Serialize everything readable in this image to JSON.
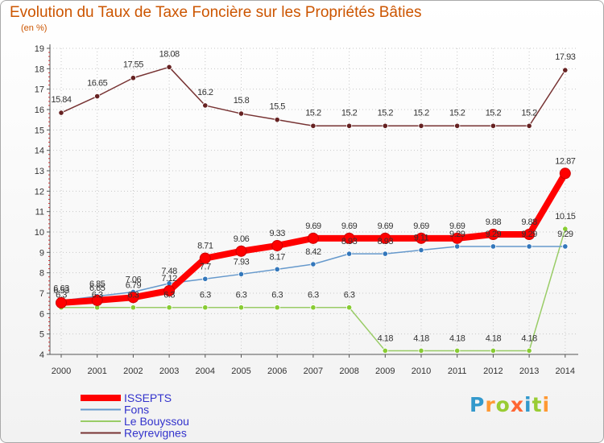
{
  "chart_data": {
    "type": "line",
    "title": "Evolution du Taux de Taxe Foncière sur les Propriétés Bâties",
    "subtitle": "(en %)",
    "x": [
      "2000",
      "2001",
      "2002",
      "2003",
      "2004",
      "2005",
      "2006",
      "2007",
      "2008",
      "2009",
      "2010",
      "2011",
      "2012",
      "2013",
      "2014"
    ],
    "ylim": [
      4,
      19
    ],
    "yticks": [
      4,
      5,
      6,
      7,
      8,
      9,
      10,
      11,
      12,
      13,
      14,
      15,
      16,
      17,
      18,
      19
    ],
    "series": [
      {
        "name": "ISSEPTS",
        "color": "#ff0000",
        "width": 8,
        "values": [
          6.53,
          6.65,
          6.79,
          7.12,
          8.71,
          9.06,
          9.33,
          9.69,
          9.69,
          9.69,
          9.69,
          9.69,
          9.88,
          9.88,
          12.87
        ],
        "labels": [
          "6.53",
          "6.65",
          "6.79",
          "7.12",
          "8.71",
          "9.06",
          "9.33",
          "9.69",
          "9.69",
          "9.69",
          "9.69",
          "9.69",
          "9.88",
          "9.88",
          "12.87"
        ]
      },
      {
        "name": "Fons",
        "color": "#6699cc",
        "width": 1.5,
        "values": [
          6.63,
          6.85,
          7.06,
          7.48,
          7.7,
          7.93,
          8.17,
          8.42,
          8.93,
          8.93,
          9.11,
          9.29,
          9.29,
          9.29,
          9.29
        ],
        "labels": [
          "6.63",
          "6.85",
          "7.06",
          "7.48",
          "7.7",
          "7.93",
          "8.17",
          "8.42",
          "8.93",
          "8.93",
          "9.11",
          "9.29",
          "9.29",
          "9.29",
          "9.29"
        ]
      },
      {
        "name": "Le Bouyssou",
        "color": "#99cc66",
        "width": 1.5,
        "values": [
          6.3,
          6.3,
          6.3,
          6.3,
          6.3,
          6.3,
          6.3,
          6.3,
          6.3,
          4.18,
          4.18,
          4.18,
          4.18,
          4.18,
          10.15
        ],
        "labels": [
          "6.3",
          "6.3",
          "6.3",
          "6.3",
          "6.3",
          "6.3",
          "6.3",
          "6.3",
          "6.3",
          "4.18",
          "4.18",
          "4.18",
          "4.18",
          "4.18",
          "10.15"
        ]
      },
      {
        "name": "Reyrevignes",
        "color": "#773333",
        "width": 1.5,
        "values": [
          15.84,
          16.65,
          17.55,
          18.08,
          16.2,
          15.8,
          15.5,
          15.2,
          15.2,
          15.2,
          15.2,
          15.2,
          15.2,
          15.2,
          17.93
        ],
        "labels": [
          "15.84",
          "16.65",
          "17.55",
          "18.08",
          "16.2",
          "15.8",
          "15.5",
          "15.2",
          "15.2",
          "15.2",
          "15.2",
          "15.2",
          "15.2",
          "15.2",
          "17.93"
        ]
      }
    ],
    "legend_position": "bottom-left"
  },
  "logo": {
    "letters": [
      "P",
      "r",
      "o",
      "x",
      "i",
      "t",
      "i"
    ],
    "colors": [
      "#3399cc",
      "#ff9933",
      "#99cc33",
      "#ff6633",
      "#3399cc",
      "#99cc33",
      "#ff9933"
    ]
  }
}
